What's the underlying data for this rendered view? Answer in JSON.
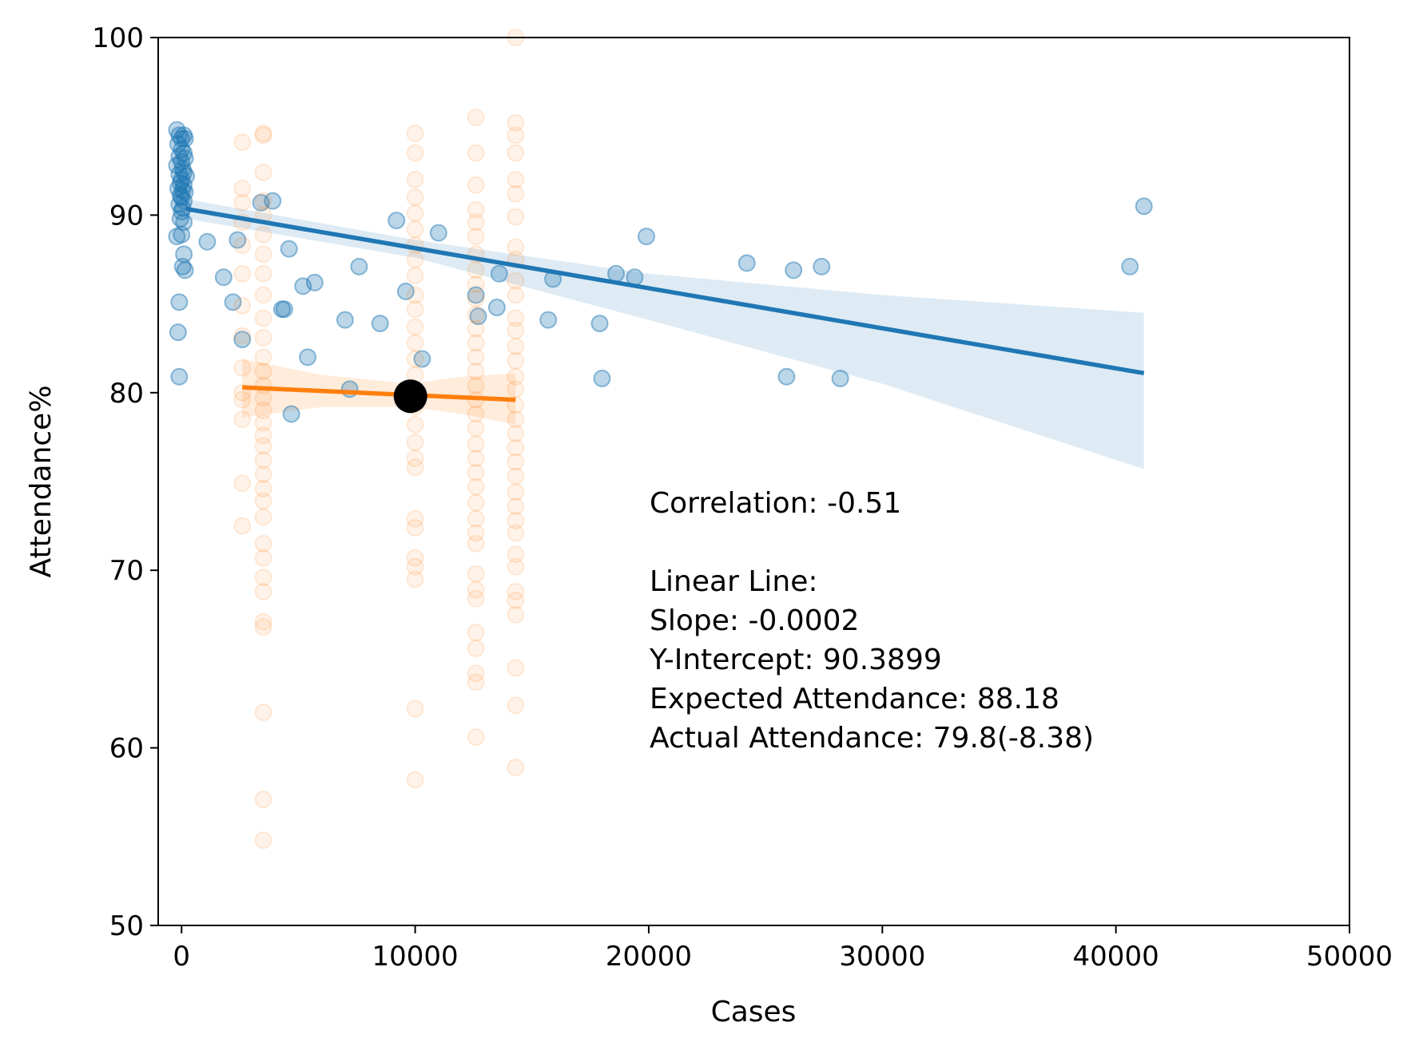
{
  "chart_data": {
    "type": "scatter",
    "title": "",
    "xlabel": "Cases",
    "ylabel": "Attendance%",
    "xlim": [
      -1000,
      50000
    ],
    "ylim": [
      50,
      100
    ],
    "x_ticks": [
      0,
      10000,
      20000,
      30000,
      40000,
      50000
    ],
    "y_ticks": [
      50,
      60,
      70,
      80,
      90,
      100
    ],
    "x_tick_labels": [
      "0",
      "10000",
      "20000",
      "30000",
      "40000",
      "50000"
    ],
    "y_tick_labels": [
      "50",
      "60",
      "70",
      "80",
      "90",
      "100"
    ],
    "grid": false,
    "legend": false,
    "colors": {
      "blue": "#1f77b4",
      "orange": "#ff7f0e",
      "marker": "#000000"
    },
    "series": [
      {
        "color": "#1f77b4",
        "points": [
          [
            -200,
            94.8
          ],
          [
            -100,
            94.5
          ],
          [
            0,
            94.3
          ],
          [
            100,
            94.5
          ],
          [
            150,
            94.3
          ],
          [
            -150,
            94.0
          ],
          [
            0,
            93.7
          ],
          [
            100,
            93.5
          ],
          [
            -100,
            93.3
          ],
          [
            150,
            93.2
          ],
          [
            0,
            93.0
          ],
          [
            -200,
            92.8
          ],
          [
            50,
            92.6
          ],
          [
            100,
            92.4
          ],
          [
            -100,
            92.3
          ],
          [
            200,
            92.2
          ],
          [
            0,
            92.0
          ],
          [
            -50,
            91.8
          ],
          [
            100,
            91.7
          ],
          [
            -150,
            91.5
          ],
          [
            50,
            91.4
          ],
          [
            150,
            91.3
          ],
          [
            -50,
            91.1
          ],
          [
            0,
            91.0
          ],
          [
            100,
            90.8
          ],
          [
            -100,
            90.6
          ],
          [
            50,
            90.4
          ],
          [
            0,
            90.2
          ],
          [
            -50,
            89.8
          ],
          [
            100,
            89.6
          ],
          [
            -200,
            88.8
          ],
          [
            0,
            88.9
          ],
          [
            100,
            87.8
          ],
          [
            50,
            87.1
          ],
          [
            150,
            86.9
          ],
          [
            -100,
            85.1
          ],
          [
            -150,
            83.4
          ],
          [
            -100,
            80.9
          ],
          [
            1100,
            88.5
          ],
          [
            1800,
            86.5
          ],
          [
            2200,
            85.1
          ],
          [
            2400,
            88.6
          ],
          [
            2600,
            83.0
          ],
          [
            3400,
            90.7
          ],
          [
            3900,
            90.8
          ],
          [
            4300,
            84.7
          ],
          [
            4400,
            84.7
          ],
          [
            4600,
            88.1
          ],
          [
            4700,
            78.8
          ],
          [
            5200,
            86.0
          ],
          [
            5400,
            82.0
          ],
          [
            5700,
            86.2
          ],
          [
            7000,
            84.1
          ],
          [
            7200,
            80.2
          ],
          [
            7600,
            87.1
          ],
          [
            8500,
            83.9
          ],
          [
            9200,
            89.7
          ],
          [
            9600,
            85.7
          ],
          [
            10300,
            81.9
          ],
          [
            11000,
            89.0
          ],
          [
            12600,
            85.5
          ],
          [
            12700,
            84.3
          ],
          [
            13500,
            84.8
          ],
          [
            13600,
            86.7
          ],
          [
            15700,
            84.1
          ],
          [
            15900,
            86.4
          ],
          [
            17900,
            83.9
          ],
          [
            18000,
            80.8
          ],
          [
            18600,
            86.7
          ],
          [
            19400,
            86.5
          ],
          [
            19900,
            88.8
          ],
          [
            24200,
            87.3
          ],
          [
            25900,
            80.9
          ],
          [
            26200,
            86.9
          ],
          [
            27400,
            87.1
          ],
          [
            28200,
            80.8
          ],
          [
            40600,
            87.1
          ],
          [
            41200,
            90.5
          ]
        ],
        "fit": {
          "x": [
            200,
            41200
          ],
          "y": [
            90.35,
            81.1
          ]
        },
        "ci": {
          "x": [
            200,
            10000,
            20000,
            30000,
            41200
          ],
          "upper": [
            90.9,
            88.6,
            86.7,
            85.5,
            84.5
          ],
          "lower": [
            89.8,
            87.6,
            84.1,
            80.5,
            75.7
          ]
        }
      },
      {
        "color": "#ff7f0e",
        "columns": [
          {
            "x": 2600,
            "y": [
              94.1,
              91.5,
              90.7,
              89.6,
              88.3,
              86.7,
              84.9,
              83.2,
              81.4,
              80.0,
              79.6,
              78.5,
              74.9,
              72.5
            ]
          },
          {
            "x": 3500,
            "y": [
              94.6,
              94.5,
              92.4,
              90.8,
              90.0,
              88.9,
              87.8,
              86.7,
              85.5,
              84.2,
              83.1,
              82.0,
              81.2,
              80.4,
              79.7,
              79.0,
              78.3,
              77.6,
              77.0,
              76.2,
              75.4,
              74.6,
              73.9,
              73.0,
              71.5,
              70.7,
              69.6,
              68.8,
              67.1,
              66.8,
              62.0,
              57.1,
              54.8
            ]
          },
          {
            "x": 10000,
            "y": [
              94.6,
              93.5,
              92.0,
              91.0,
              90.1,
              89.2,
              88.3,
              87.5,
              86.6,
              85.5,
              84.7,
              83.7,
              82.8,
              81.9,
              81.0,
              80.1,
              79.2,
              78.2,
              77.2,
              76.3,
              75.8,
              72.9,
              72.4,
              70.7,
              70.2,
              69.5,
              62.2,
              58.2
            ]
          },
          {
            "x": 12600,
            "y": [
              95.5,
              93.5,
              91.7,
              90.3,
              89.6,
              88.8,
              87.8,
              86.9,
              86.1,
              85.3,
              84.4,
              83.6,
              82.8,
              82.0,
              81.2,
              80.4,
              79.6,
              78.8,
              78.0,
              77.1,
              76.3,
              75.5,
              74.7,
              73.8,
              72.9,
              72.1,
              71.5,
              69.8,
              68.9,
              68.4,
              66.5,
              65.6,
              64.2,
              63.7,
              60.6
            ]
          },
          {
            "x": 14300,
            "y": [
              100.0,
              95.2,
              94.5,
              93.5,
              92.0,
              91.2,
              89.9,
              88.2,
              87.5,
              86.3,
              85.5,
              84.2,
              83.5,
              82.6,
              81.8,
              80.9,
              80.2,
              79.3,
              78.5,
              77.7,
              76.9,
              76.1,
              75.3,
              74.4,
              73.6,
              72.8,
              72.1,
              70.9,
              70.2,
              68.8,
              68.3,
              67.5,
              64.5,
              62.4,
              58.9
            ]
          }
        ],
        "fit": {
          "x": [
            2600,
            14300
          ],
          "y": [
            80.3,
            79.6
          ]
        },
        "ci": {
          "x": [
            2600,
            6000,
            9800,
            12000,
            14300
          ],
          "upper": [
            81.9,
            81.0,
            80.5,
            80.9,
            81.1
          ],
          "lower": [
            78.6,
            79.2,
            79.2,
            78.8,
            78.2
          ]
        }
      }
    ],
    "highlight_point": {
      "x": 9800,
      "y": 79.8
    },
    "annotation_lines": [
      "Correlation: -0.51",
      "",
      "Linear Line:",
      "Slope: -0.0002",
      "Y-Intercept: 90.3899",
      "Expected Attendance: 88.18",
      "Actual Attendance: 79.8(-8.38)"
    ]
  }
}
